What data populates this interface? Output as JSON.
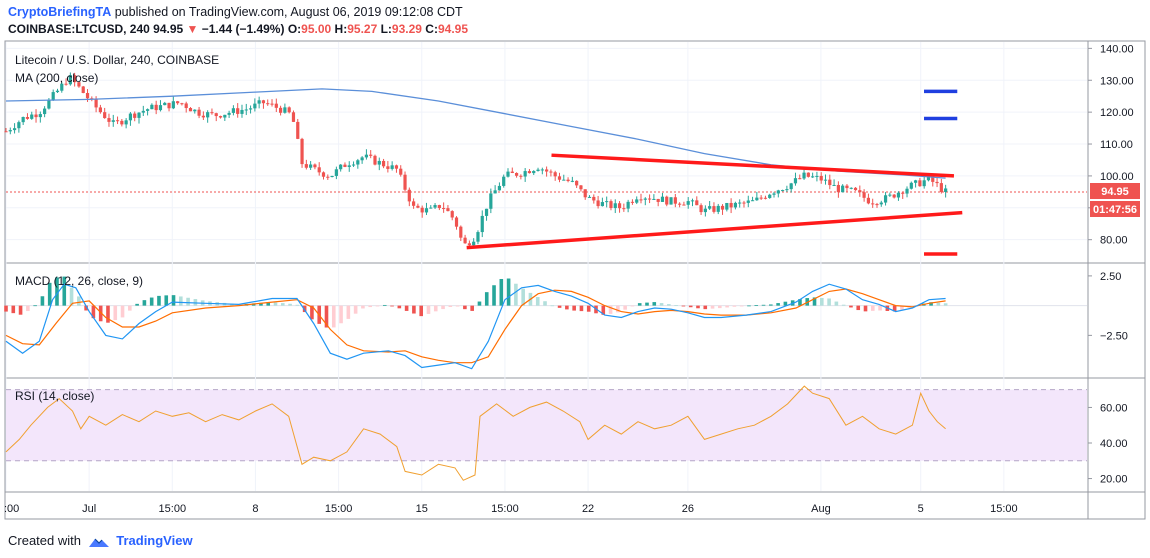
{
  "header": {
    "publisher": "CryptoBriefingTA",
    "published_text": "published on TradingView.com, August 06, 2019 09:12:08 CDT",
    "symbol": "COINBASE:LTCUSD, 240",
    "last": "94.95",
    "change_arrow": "▼",
    "change": "−1.44 (−1.49%)",
    "o_label": "O:",
    "o_value": "95.00",
    "h_label": "H:",
    "h_value": "95.27",
    "l_label": "L:",
    "l_value": "93.29",
    "c_label": "C:",
    "c_value": "94.95"
  },
  "price_pane": {
    "title": "Litecoin / U.S. Dollar, 240, COINBASE",
    "ma_label": "MA (200, close)",
    "price_tag": "94.95",
    "countdown_tag": "01:47:56"
  },
  "macd_pane": {
    "label": "MACD (12, 26, close, 9)"
  },
  "rsi_pane": {
    "label": "RSI (14, close)"
  },
  "x_axis": {
    "ticks": [
      {
        "label": ":00",
        "t": 0
      },
      {
        "label": "Jul",
        "t": 0.5
      },
      {
        "label": "15:00",
        "t": 1.0
      },
      {
        "label": "8",
        "t": 1.5
      },
      {
        "label": "15:00",
        "t": 2.0
      },
      {
        "label": "15",
        "t": 2.5
      },
      {
        "label": "15:00",
        "t": 3.0
      },
      {
        "label": "22",
        "t": 3.5
      },
      {
        "label": "26",
        "t": 4.1
      },
      {
        "label": "Aug",
        "t": 4.9
      },
      {
        "label": "5",
        "t": 5.5
      },
      {
        "label": "15:00",
        "t": 6.0
      }
    ]
  },
  "footer": {
    "text": "Created with",
    "brand": "TradingView"
  },
  "colors": {
    "up": "#26a69a",
    "down": "#ef5350",
    "ma": "#5b8fd9",
    "trend": "#ff1a1a",
    "target_up": "#1f3fe0",
    "target_down": "#ff1a1a",
    "macd": "#2196f3",
    "signal": "#ff6d00",
    "rsi": "#f0a030",
    "rsi_band": "#f3e6fb"
  },
  "chart_data": [
    {
      "type": "candlestick",
      "title": "Litecoin / U.S. Dollar, 240, COINBASE",
      "y_axis_ticks": [
        80,
        90,
        100,
        110,
        120,
        130,
        140
      ],
      "y_axis_labels": [
        "80.00",
        "",
        "100.00",
        "110.00",
        "120.00",
        "130.00",
        "140.00"
      ],
      "ylim": [
        73,
        142
      ],
      "last_price": 94.95,
      "close_path": [
        [
          0,
          114
        ],
        [
          0.1,
          118
        ],
        [
          0.2,
          120
        ],
        [
          0.3,
          126
        ],
        [
          0.38,
          131
        ],
        [
          0.45,
          127
        ],
        [
          0.55,
          121
        ],
        [
          0.65,
          116
        ],
        [
          0.75,
          119
        ],
        [
          0.85,
          121
        ],
        [
          0.95,
          122
        ],
        [
          1.05,
          123
        ],
        [
          1.15,
          120
        ],
        [
          1.25,
          119
        ],
        [
          1.35,
          120
        ],
        [
          1.45,
          121
        ],
        [
          1.55,
          123
        ],
        [
          1.65,
          121
        ],
        [
          1.72,
          119
        ],
        [
          1.78,
          104
        ],
        [
          1.85,
          102
        ],
        [
          1.95,
          100
        ],
        [
          2.05,
          104
        ],
        [
          2.15,
          106
        ],
        [
          2.25,
          104
        ],
        [
          2.35,
          102
        ],
        [
          2.45,
          90
        ],
        [
          2.55,
          89
        ],
        [
          2.62,
          91
        ],
        [
          2.7,
          86
        ],
        [
          2.75,
          78
        ],
        [
          2.82,
          81
        ],
        [
          2.9,
          92
        ],
        [
          3.0,
          100
        ],
        [
          3.1,
          101
        ],
        [
          3.2,
          103
        ],
        [
          3.3,
          100
        ],
        [
          3.4,
          98
        ],
        [
          3.5,
          93
        ],
        [
          3.6,
          91
        ],
        [
          3.7,
          90
        ],
        [
          3.8,
          94
        ],
        [
          3.9,
          93
        ],
        [
          4.0,
          92
        ],
        [
          4.1,
          92
        ],
        [
          4.2,
          89
        ],
        [
          4.3,
          90
        ],
        [
          4.4,
          91
        ],
        [
          4.5,
          92
        ],
        [
          4.6,
          95
        ],
        [
          4.7,
          97
        ],
        [
          4.8,
          100
        ],
        [
          4.9,
          99
        ],
        [
          5.0,
          96
        ],
        [
          5.1,
          95
        ],
        [
          5.2,
          92
        ],
        [
          5.3,
          93
        ],
        [
          5.4,
          96
        ],
        [
          5.5,
          98
        ],
        [
          5.55,
          99
        ],
        [
          5.6,
          97
        ],
        [
          5.65,
          94.95
        ]
      ],
      "ma_200": [
        [
          0,
          123.5
        ],
        [
          0.5,
          124
        ],
        [
          1.0,
          125
        ],
        [
          1.5,
          126.3
        ],
        [
          1.9,
          127.3
        ],
        [
          2.2,
          126.5
        ],
        [
          2.6,
          123.5
        ],
        [
          3.0,
          119.5
        ],
        [
          3.4,
          115.5
        ],
        [
          3.8,
          111.5
        ],
        [
          4.2,
          107
        ],
        [
          4.6,
          103.5
        ],
        [
          5.0,
          101.5
        ],
        [
          5.4,
          100.3
        ],
        [
          5.65,
          99.3
        ]
      ],
      "trendlines": [
        {
          "name": "upper",
          "points": [
            [
              3.28,
              106.5
            ],
            [
              5.7,
              100
            ]
          ]
        },
        {
          "name": "lower",
          "points": [
            [
              2.77,
              77.5
            ],
            [
              5.75,
              88.5
            ]
          ]
        }
      ],
      "targets": [
        126.5,
        118,
        75.5
      ]
    },
    {
      "type": "macd",
      "title": "MACD (12, 26, close, 9)",
      "y_axis_ticks": [
        2.5,
        -2.5
      ],
      "y_axis_labels": [
        "2.50",
        "−2.50"
      ],
      "ylim": [
        -6,
        3.5
      ],
      "macd": [
        [
          0,
          -3
        ],
        [
          0.1,
          -4
        ],
        [
          0.2,
          -3
        ],
        [
          0.28,
          0.5
        ],
        [
          0.35,
          1.8
        ],
        [
          0.42,
          1.5
        ],
        [
          0.5,
          -0.5
        ],
        [
          0.6,
          -2.5
        ],
        [
          0.7,
          -2.8
        ],
        [
          0.8,
          -1.5
        ],
        [
          0.9,
          -0.5
        ],
        [
          1.0,
          0.3
        ],
        [
          1.2,
          0.2
        ],
        [
          1.4,
          0.1
        ],
        [
          1.6,
          0.6
        ],
        [
          1.75,
          0.6
        ],
        [
          1.85,
          -1.5
        ],
        [
          1.95,
          -4
        ],
        [
          2.05,
          -4.5
        ],
        [
          2.15,
          -4
        ],
        [
          2.3,
          -3.8
        ],
        [
          2.4,
          -4.2
        ],
        [
          2.5,
          -5.2
        ],
        [
          2.6,
          -5
        ],
        [
          2.7,
          -4.8
        ],
        [
          2.8,
          -5.3
        ],
        [
          2.9,
          -3
        ],
        [
          3.0,
          0.5
        ],
        [
          3.1,
          1.5
        ],
        [
          3.2,
          1.7
        ],
        [
          3.3,
          1.2
        ],
        [
          3.4,
          0.8
        ],
        [
          3.5,
          0.2
        ],
        [
          3.6,
          -0.8
        ],
        [
          3.7,
          -1
        ],
        [
          3.8,
          -0.5
        ],
        [
          3.9,
          -0.2
        ],
        [
          4.0,
          -0.3
        ],
        [
          4.1,
          -0.6
        ],
        [
          4.2,
          -1
        ],
        [
          4.3,
          -1
        ],
        [
          4.45,
          -0.8
        ],
        [
          4.6,
          -0.5
        ],
        [
          4.75,
          0.3
        ],
        [
          4.85,
          1.2
        ],
        [
          4.95,
          1.8
        ],
        [
          5.05,
          1.4
        ],
        [
          5.15,
          0.5
        ],
        [
          5.25,
          0.1
        ],
        [
          5.35,
          -0.5
        ],
        [
          5.45,
          -0.2
        ],
        [
          5.55,
          0.5
        ],
        [
          5.65,
          0.6
        ]
      ],
      "signal": [
        [
          0,
          -2.5
        ],
        [
          0.1,
          -3.2
        ],
        [
          0.2,
          -3.3
        ],
        [
          0.3,
          -1.5
        ],
        [
          0.4,
          0.2
        ],
        [
          0.5,
          0.4
        ],
        [
          0.6,
          -1
        ],
        [
          0.7,
          -1.8
        ],
        [
          0.8,
          -1.8
        ],
        [
          0.9,
          -1.3
        ],
        [
          1.0,
          -0.6
        ],
        [
          1.2,
          -0.2
        ],
        [
          1.4,
          0
        ],
        [
          1.6,
          0.3
        ],
        [
          1.75,
          0.5
        ],
        [
          1.85,
          -0.2
        ],
        [
          1.95,
          -2
        ],
        [
          2.05,
          -3.3
        ],
        [
          2.15,
          -3.8
        ],
        [
          2.3,
          -3.9
        ],
        [
          2.4,
          -3.8
        ],
        [
          2.5,
          -4.3
        ],
        [
          2.6,
          -4.6
        ],
        [
          2.7,
          -4.8
        ],
        [
          2.8,
          -4.8
        ],
        [
          2.9,
          -4.3
        ],
        [
          3.0,
          -2
        ],
        [
          3.1,
          0
        ],
        [
          3.2,
          1
        ],
        [
          3.3,
          1.3
        ],
        [
          3.4,
          1.2
        ],
        [
          3.5,
          0.7
        ],
        [
          3.6,
          0
        ],
        [
          3.7,
          -0.5
        ],
        [
          3.8,
          -0.7
        ],
        [
          3.9,
          -0.5
        ],
        [
          4.0,
          -0.4
        ],
        [
          4.1,
          -0.5
        ],
        [
          4.2,
          -0.7
        ],
        [
          4.3,
          -0.8
        ],
        [
          4.45,
          -0.8
        ],
        [
          4.6,
          -0.6
        ],
        [
          4.75,
          -0.2
        ],
        [
          4.85,
          0.5
        ],
        [
          4.95,
          1.2
        ],
        [
          5.05,
          1.4
        ],
        [
          5.15,
          1
        ],
        [
          5.25,
          0.5
        ],
        [
          5.35,
          0
        ],
        [
          5.45,
          -0.1
        ],
        [
          5.55,
          0.2
        ],
        [
          5.65,
          0.4
        ]
      ]
    },
    {
      "type": "line",
      "title": "RSI (14, close)",
      "y_axis_ticks": [
        20,
        40,
        60
      ],
      "y_axis_labels": [
        "20.00",
        "40.00",
        "60.00"
      ],
      "ylim": [
        13,
        76
      ],
      "band": [
        30,
        70
      ],
      "rsi": [
        [
          0,
          35
        ],
        [
          0.08,
          42
        ],
        [
          0.15,
          50
        ],
        [
          0.25,
          60
        ],
        [
          0.32,
          65
        ],
        [
          0.4,
          58
        ],
        [
          0.45,
          48
        ],
        [
          0.5,
          55
        ],
        [
          0.6,
          50
        ],
        [
          0.7,
          56
        ],
        [
          0.8,
          52
        ],
        [
          0.9,
          58
        ],
        [
          1.0,
          55
        ],
        [
          1.1,
          57
        ],
        [
          1.2,
          52
        ],
        [
          1.3,
          56
        ],
        [
          1.4,
          53
        ],
        [
          1.5,
          58
        ],
        [
          1.6,
          62
        ],
        [
          1.7,
          55
        ],
        [
          1.78,
          28
        ],
        [
          1.85,
          32
        ],
        [
          1.95,
          30
        ],
        [
          2.05,
          35
        ],
        [
          2.15,
          48
        ],
        [
          2.25,
          45
        ],
        [
          2.35,
          38
        ],
        [
          2.4,
          24
        ],
        [
          2.5,
          22
        ],
        [
          2.6,
          28
        ],
        [
          2.7,
          26
        ],
        [
          2.75,
          19
        ],
        [
          2.82,
          22
        ],
        [
          2.85,
          55
        ],
        [
          2.95,
          62
        ],
        [
          3.05,
          55
        ],
        [
          3.15,
          60
        ],
        [
          3.25,
          63
        ],
        [
          3.35,
          58
        ],
        [
          3.45,
          52
        ],
        [
          3.5,
          42
        ],
        [
          3.6,
          50
        ],
        [
          3.7,
          45
        ],
        [
          3.8,
          52
        ],
        [
          3.9,
          48
        ],
        [
          4.0,
          50
        ],
        [
          4.1,
          55
        ],
        [
          4.2,
          42
        ],
        [
          4.3,
          45
        ],
        [
          4.4,
          48
        ],
        [
          4.5,
          50
        ],
        [
          4.6,
          55
        ],
        [
          4.7,
          62
        ],
        [
          4.8,
          72
        ],
        [
          4.85,
          68
        ],
        [
          4.95,
          65
        ],
        [
          5.05,
          50
        ],
        [
          5.15,
          55
        ],
        [
          5.25,
          48
        ],
        [
          5.35,
          45
        ],
        [
          5.45,
          50
        ],
        [
          5.5,
          68
        ],
        [
          5.55,
          58
        ],
        [
          5.6,
          52
        ],
        [
          5.65,
          48
        ]
      ]
    }
  ]
}
